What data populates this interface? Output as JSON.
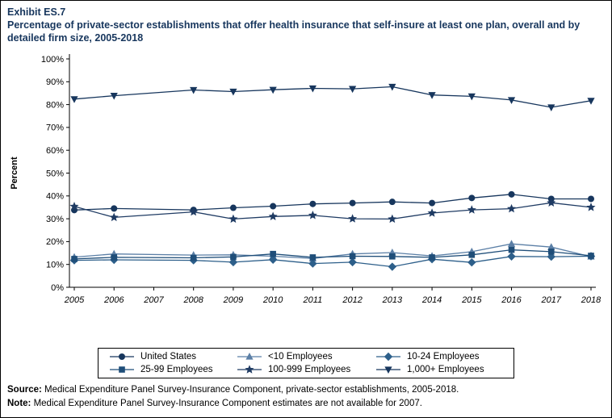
{
  "header": {
    "exhibit": "Exhibit ES.7",
    "title": "Percentage of private-sector establishments that offer health insurance that self-insure at least one plan, overall and by detailed firm size, 2005-2018"
  },
  "footer": {
    "source_label": "Source:",
    "source_text": " Medical Expenditure Panel Survey-Insurance Component, private-sector establishments, 2005-2018.",
    "note_label": "Note:",
    "note_text": " Medical Expenditure Panel Survey-Insurance Component estimates are not available for 2007."
  },
  "colors": {
    "title": "#17365D",
    "axis": "#000000"
  },
  "chart_data": {
    "type": "line",
    "title": "Percentage of private-sector establishments that offer health insurance that self-insure at least one plan, overall and by detailed firm size, 2005-2018",
    "xlabel": "",
    "ylabel": "Percent",
    "ylim": [
      0,
      100
    ],
    "y_tick_step": 10,
    "y_tick_suffix": "%",
    "grid": false,
    "legend_position": "bottom",
    "x_ticks": [
      2005,
      2006,
      2007,
      2008,
      2009,
      2010,
      2011,
      2012,
      2013,
      2014,
      2015,
      2016,
      2017,
      2018
    ],
    "x": [
      2005,
      2006,
      2008,
      2009,
      2010,
      2011,
      2012,
      2013,
      2014,
      2015,
      2016,
      2017,
      2018
    ],
    "missing_years_note": "No data plotted for 2007 (estimates not available)",
    "series": [
      {
        "name": "United States",
        "marker": "circle",
        "color": "#17365D",
        "values": [
          33.8,
          34.5,
          33.9,
          34.8,
          35.5,
          36.5,
          36.9,
          37.4,
          36.9,
          39.1,
          40.7,
          38.7,
          38.7
        ]
      },
      {
        "name": "<10 Employees",
        "marker": "triangle",
        "color": "#5B7FA6",
        "values": [
          13.2,
          14.6,
          14.1,
          14.2,
          13.6,
          12.6,
          14.6,
          15.2,
          13.7,
          15.6,
          19.0,
          17.6,
          13.4
        ]
      },
      {
        "name": "10-24 Employees",
        "marker": "diamond",
        "color": "#2D5F8A",
        "values": [
          11.8,
          12.0,
          11.8,
          11.0,
          12.1,
          10.4,
          11.0,
          9.0,
          12.3,
          10.9,
          13.5,
          13.4,
          13.6
        ]
      },
      {
        "name": "25-99 Employees",
        "marker": "square",
        "color": "#1F4E79",
        "values": [
          12.4,
          13.1,
          12.9,
          13.3,
          14.6,
          13.1,
          13.6,
          13.5,
          13.1,
          14.2,
          16.4,
          15.6,
          13.8
        ]
      },
      {
        "name": "100-999 Employees",
        "marker": "star",
        "color": "#1F3B63",
        "values": [
          35.4,
          30.6,
          33.0,
          29.9,
          31.0,
          31.5,
          30.0,
          29.9,
          32.5,
          33.9,
          34.4,
          37.0,
          35.0
        ]
      },
      {
        "name": "1,000+ Employees",
        "marker": "triangle-down",
        "color": "#17365D",
        "values": [
          82.4,
          83.9,
          86.4,
          85.7,
          86.5,
          87.1,
          86.9,
          87.8,
          84.2,
          83.6,
          82.0,
          78.8,
          81.7
        ]
      }
    ]
  }
}
